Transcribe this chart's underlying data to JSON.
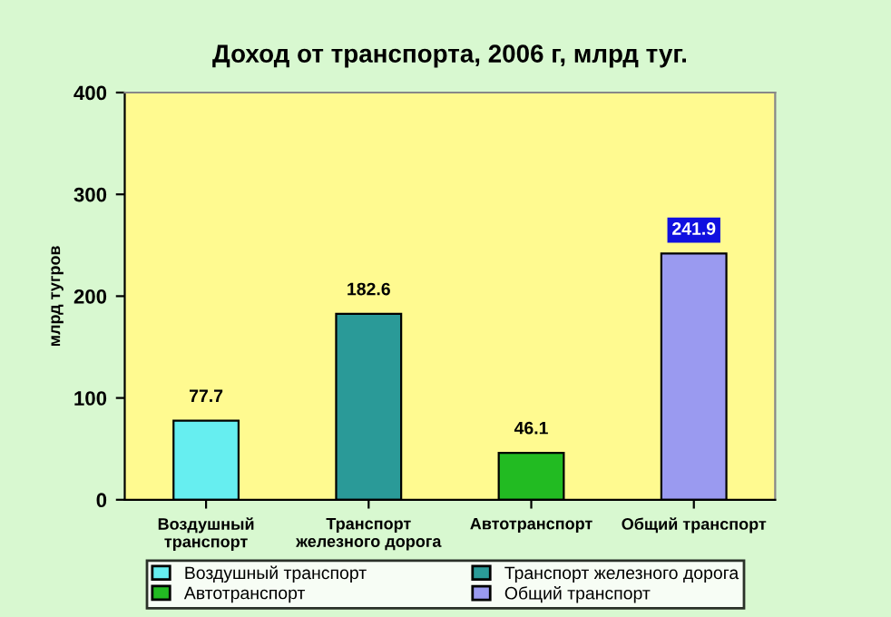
{
  "chart_data": {
    "type": "bar",
    "title": "Доход от транспорта, 2006 г, млрд туг.",
    "ylabel": "млрд тугров",
    "categories": [
      "Воздушный\nтранспорт",
      "Транспорт\nжелезного дорога",
      "Автотранспорт",
      "Общий транспорт"
    ],
    "series": [
      {
        "name": "Воздушный транспорт",
        "color": "#66eef0",
        "values": [
          77.7,
          null,
          null,
          null
        ],
        "value_labels": [
          "77.7",
          null,
          null,
          null
        ]
      },
      {
        "name": "Транспорт железного дорога",
        "color": "#2a9a98",
        "values": [
          null,
          182.6,
          null,
          null
        ],
        "value_labels": [
          null,
          "182.6",
          null,
          null
        ]
      },
      {
        "name": "Автотранспорт",
        "color": "#22bb22",
        "values": [
          null,
          null,
          46.1,
          null
        ],
        "value_labels": [
          null,
          null,
          "46.1",
          null
        ]
      },
      {
        "name": "Общий транспорт",
        "color": "#9a9af0",
        "values": [
          null,
          null,
          null,
          241.9
        ],
        "value_labels": [
          null,
          null,
          null,
          "241.9"
        ]
      }
    ],
    "ylim": [
      0,
      400
    ],
    "yticks": [
      0,
      100,
      200,
      300,
      400
    ],
    "grid": false,
    "legend": "bottom"
  }
}
